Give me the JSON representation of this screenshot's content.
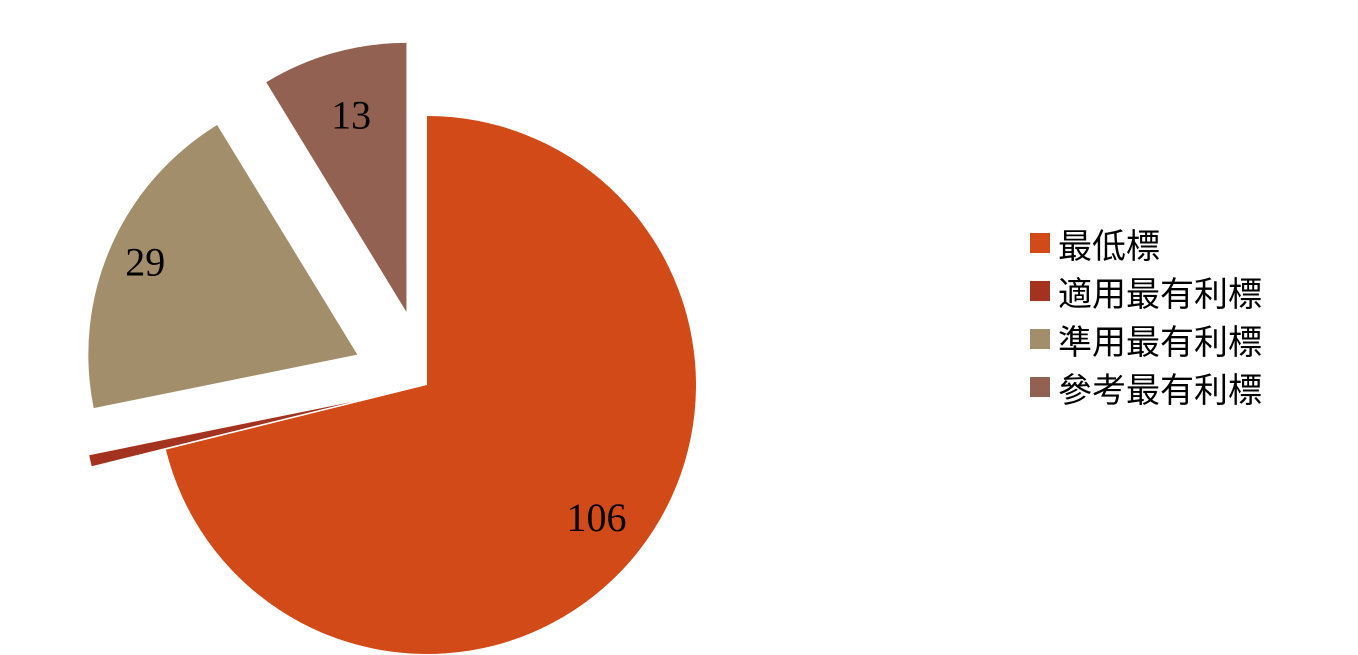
{
  "chart_data": {
    "type": "pie",
    "categories": [
      "最低標",
      "適用最有利標",
      "準用最有利標",
      "參考最有利標"
    ],
    "values": [
      106,
      1,
      29,
      13
    ],
    "colors": [
      "#D24A18",
      "#A3331F",
      "#A38E6C",
      "#936152"
    ],
    "exploded": [
      false,
      true,
      true,
      true
    ],
    "legend_position": "right",
    "title": ""
  }
}
